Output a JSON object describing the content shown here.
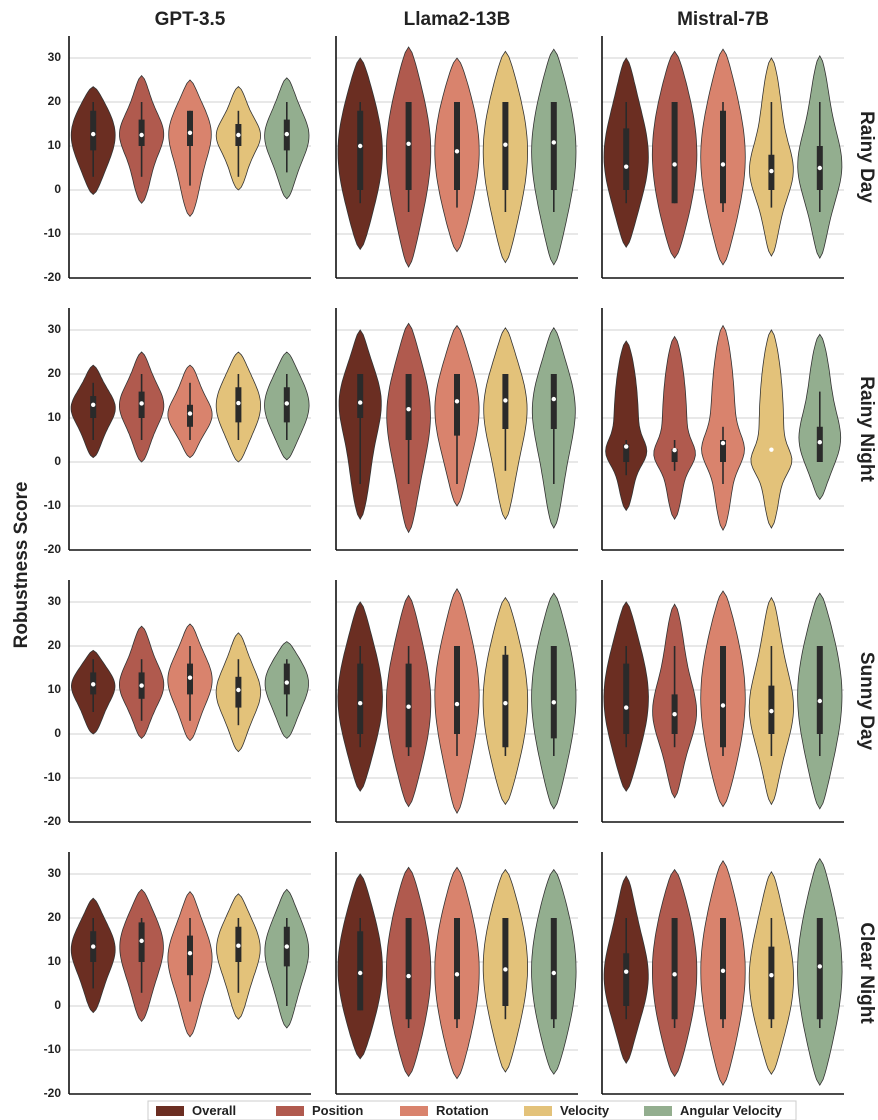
{
  "chart_data": {
    "type": "violin",
    "y_label": "Robustness Score",
    "columns": [
      "GPT-3.5",
      "Llama2-13B",
      "Mistral-7B"
    ],
    "series": [
      {
        "name": "Overall",
        "color": "#6b2e22"
      },
      {
        "name": "Position",
        "color": "#b05a4e"
      },
      {
        "name": "Rotation",
        "color": "#d9836d"
      },
      {
        "name": "Velocity",
        "color": "#e3c27a"
      },
      {
        "name": "Angular Velocity",
        "color": "#93ae8f"
      }
    ],
    "ylim": [
      -20,
      35
    ],
    "yticks": [
      -20,
      -10,
      0,
      10,
      20,
      30
    ],
    "grid": true,
    "rows": [
      {
        "label": "Rainy Day",
        "panels": [
          [
            [
              -1,
              3,
              9,
              12.7,
              18,
              20,
              23.5
            ],
            [
              -3,
              3,
              10,
              12.5,
              16,
              20,
              26
            ],
            [
              -6,
              1,
              10,
              13,
              18,
              18,
              25
            ],
            [
              0,
              3,
              10,
              12.5,
              15,
              18,
              23.5
            ],
            [
              -2,
              4,
              9,
              12.7,
              16,
              20,
              25.5
            ]
          ],
          [
            [
              -13.5,
              -3,
              0,
              10,
              18,
              20,
              30
            ],
            [
              -17.5,
              -5,
              0,
              10.5,
              20,
              20,
              32.5
            ],
            [
              -14,
              -4,
              0,
              8.8,
              20,
              20,
              30
            ],
            [
              -16.5,
              -5,
              0,
              10.3,
              20,
              20,
              31.5
            ],
            [
              -17,
              -5,
              0,
              10.8,
              20,
              20,
              32
            ]
          ],
          [
            [
              -13,
              -3,
              0,
              5.3,
              14,
              20,
              30
            ],
            [
              -15.5,
              -3,
              -3,
              5.8,
              20,
              20,
              31.5
            ],
            [
              -17,
              -5,
              -3,
              5.8,
              18,
              20,
              32
            ],
            [
              -15,
              -4,
              0,
              4.3,
              8,
              20,
              30
            ],
            [
              -15.5,
              -5,
              0,
              5,
              10,
              20,
              30.5
            ]
          ]
        ]
      },
      {
        "label": "Rainy Night",
        "panels": [
          [
            [
              1,
              5,
              10,
              13,
              15,
              18,
              22
            ],
            [
              0,
              5,
              10,
              13.3,
              16,
              20,
              25
            ],
            [
              1,
              5,
              8,
              11,
              13,
              18,
              22
            ],
            [
              0,
              5,
              9,
              13.4,
              17,
              20,
              25
            ],
            [
              0.5,
              5,
              9,
              13.3,
              17,
              20,
              25
            ]
          ],
          [
            [
              -13,
              -5,
              10,
              13.5,
              20,
              20,
              30
            ],
            [
              -16,
              -5,
              5,
              12,
              20,
              20,
              31.5
            ],
            [
              -10,
              -5,
              6,
              13.8,
              20,
              20,
              31
            ],
            [
              -13,
              -2,
              7.5,
              14,
              20,
              20,
              30.5
            ],
            [
              -15,
              -5,
              7.5,
              14.3,
              20,
              20,
              30.5
            ]
          ],
          [
            [
              -11,
              -3,
              0,
              3.5,
              4,
              5,
              27.5
            ],
            [
              -13,
              -2,
              0,
              2.7,
              3,
              5,
              28.5
            ],
            [
              -15.5,
              -5,
              0,
              4.3,
              5,
              8,
              31
            ],
            [
              -15,
              0,
              0,
              2.8,
              0,
              0,
              30
            ],
            [
              -8.5,
              0,
              0,
              4.5,
              8,
              16,
              29
            ]
          ]
        ]
      },
      {
        "label": "Sunny Day",
        "panels": [
          [
            [
              0,
              5,
              9,
              11.3,
              14,
              17,
              19
            ],
            [
              -1,
              3,
              8,
              11,
              14,
              17,
              24.5
            ],
            [
              -1.5,
              3,
              9,
              12.8,
              16,
              20,
              25
            ],
            [
              -4,
              2,
              6,
              10,
              13,
              17,
              23
            ],
            [
              -1,
              4,
              9,
              11.7,
              16,
              17,
              21
            ]
          ],
          [
            [
              -13,
              -3,
              0,
              7,
              16,
              20,
              30
            ],
            [
              -16.5,
              -5,
              -3,
              6.2,
              16,
              20,
              31.5
            ],
            [
              -18,
              -5,
              0,
              6.8,
              20,
              20,
              33
            ],
            [
              -16,
              -5,
              -3,
              7,
              18,
              20,
              31
            ],
            [
              -17,
              -5,
              -1,
              7.2,
              20,
              20,
              32
            ]
          ],
          [
            [
              -13,
              -3,
              0,
              6,
              16,
              20,
              30
            ],
            [
              -14.5,
              -3,
              0,
              4.5,
              9,
              20,
              29.5
            ],
            [
              -16.5,
              -5,
              -3,
              6.5,
              20,
              20,
              32.5
            ],
            [
              -16,
              -5,
              0,
              5.2,
              11,
              20,
              31
            ],
            [
              -17,
              -5,
              0,
              7.5,
              20,
              20,
              32
            ]
          ]
        ]
      },
      {
        "label": "Clear Night",
        "panels": [
          [
            [
              -1.5,
              4,
              10,
              13.5,
              17,
              20,
              24.5
            ],
            [
              -3.5,
              3,
              10,
              14.8,
              19,
              20,
              26.5
            ],
            [
              -7,
              1,
              7,
              12,
              16,
              20,
              26
            ],
            [
              -3,
              3,
              10,
              13.7,
              18,
              20,
              25.5
            ],
            [
              -5,
              0,
              9,
              13.5,
              18,
              20,
              26.5
            ]
          ],
          [
            [
              -12,
              -1,
              -1,
              7.5,
              17,
              20,
              30
            ],
            [
              -16,
              -5,
              -3,
              6.8,
              20,
              20,
              31.5
            ],
            [
              -16.5,
              -5,
              -3,
              7.2,
              20,
              20,
              31.5
            ],
            [
              -15,
              -3,
              0,
              8.3,
              20,
              20,
              31
            ],
            [
              -15.5,
              -5,
              -3,
              7.5,
              20,
              20,
              31
            ]
          ],
          [
            [
              -13,
              -3,
              0,
              7.8,
              12,
              20,
              29.5
            ],
            [
              -16,
              -5,
              -3,
              7.2,
              20,
              20,
              31
            ],
            [
              -18,
              -5,
              -3,
              8,
              20,
              20,
              33
            ],
            [
              -15.5,
              -5,
              -3,
              7,
              13.5,
              20,
              30.5
            ],
            [
              -18,
              -5,
              -3,
              9,
              20,
              20,
              33.5
            ]
          ]
        ]
      }
    ]
  }
}
